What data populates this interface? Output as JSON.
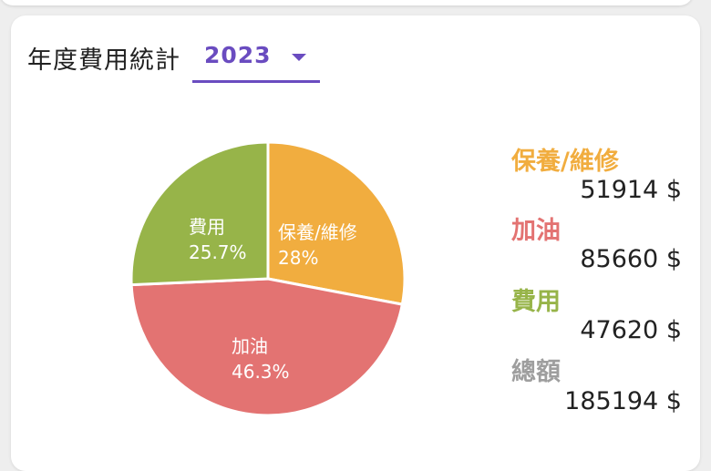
{
  "header": {
    "title": "年度費用統計",
    "year": "2023",
    "accent_color": "#6a4cc0"
  },
  "chart_data": {
    "type": "pie",
    "slices": [
      {
        "label": "保養/維修",
        "value": 28,
        "percent_text": "28%",
        "color": "#f1ad3f"
      },
      {
        "label": "加油",
        "value": 46.3,
        "percent_text": "46.3%",
        "color": "#e37372"
      },
      {
        "label": "費用",
        "value": 25.7,
        "percent_text": "25.7%",
        "color": "#97b449"
      }
    ]
  },
  "legend": [
    {
      "name": "保養/維修",
      "amount": "51914 $",
      "color": "#f1ad3f"
    },
    {
      "name": "加油",
      "amount": "85660 $",
      "color": "#e37372"
    },
    {
      "name": "費用",
      "amount": "47620 $",
      "color": "#97b449"
    },
    {
      "name": "總額",
      "amount": "185194 $",
      "color": "#9e9e9e"
    }
  ]
}
